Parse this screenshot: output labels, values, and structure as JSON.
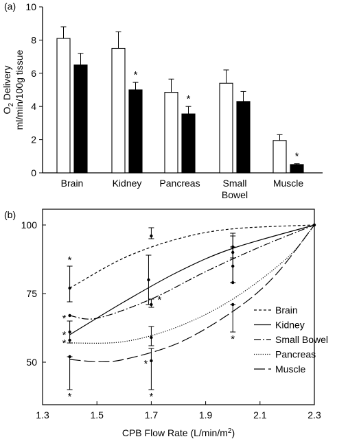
{
  "chart_data": [
    {
      "type": "bar",
      "panel_label": "(a)",
      "ylabel_line1": "O2 Delivery",
      "ylabel_line2": "ml/min/100g tissue",
      "ylim": [
        0,
        10
      ],
      "yticks": [
        0,
        2,
        4,
        6,
        8,
        10
      ],
      "categories": [
        "Brain",
        "Kidney",
        "Pancreas",
        "Small\nBowel",
        "Muscle"
      ],
      "series": [
        {
          "fill": "#ffffff",
          "values": [
            8.1,
            7.5,
            4.85,
            5.4,
            1.95
          ],
          "errors": [
            0.7,
            1.0,
            0.8,
            0.8,
            0.35
          ]
        },
        {
          "fill": "#000000",
          "values": [
            6.5,
            5.0,
            3.55,
            4.3,
            0.5
          ],
          "errors": [
            0.7,
            0.45,
            0.45,
            0.6,
            0.05
          ]
        }
      ],
      "significance": [
        "",
        "*",
        "*",
        "",
        "*"
      ]
    },
    {
      "type": "line",
      "panel_label": "(b)",
      "xlabel": "CPB Flow Rate (L/min/m2)",
      "xlim": [
        1.3,
        2.3
      ],
      "ylim": [
        35,
        100
      ],
      "xticks": [
        1.3,
        1.5,
        1.7,
        1.9,
        2.1,
        2.3
      ],
      "yticks": [
        50,
        75,
        100
      ],
      "series": [
        {
          "name": "Brain",
          "dash": "4,3",
          "curve": [
            [
              1.4,
              77
            ],
            [
              1.6,
              88
            ],
            [
              1.8,
              95
            ],
            [
              2.0,
              98.6
            ],
            [
              2.3,
              100
            ]
          ],
          "points": [
            {
              "x": 1.4,
              "y": 77,
              "lo": 72,
              "hi": 85,
              "star_top": true
            },
            {
              "x": 1.7,
              "y": 96,
              "lo": 95,
              "hi": 99
            },
            {
              "x": 2.0,
              "y": 92,
              "lo": 88,
              "hi": 97
            },
            {
              "x": 2.3,
              "y": 100
            }
          ]
        },
        {
          "name": "Kidney",
          "dash": "",
          "curve": [
            [
              1.4,
              60
            ],
            [
              1.6,
              72
            ],
            [
              1.8,
              83
            ],
            [
              2.0,
              91.5
            ],
            [
              2.3,
              100
            ]
          ],
          "points": [
            {
              "x": 1.4,
              "y": 61,
              "lo": 57,
              "hi": 65,
              "star_left": true
            },
            {
              "x": 1.69,
              "y": 80,
              "lo": 71,
              "hi": 89
            },
            {
              "x": 2.0,
              "y": 90,
              "lo": 79,
              "hi": 96
            },
            {
              "x": 2.3,
              "y": 100
            }
          ]
        },
        {
          "name": "Small Bowel",
          "dash": "10,3,2,3",
          "curve": [
            [
              1.4,
              67
            ],
            [
              1.5,
              66
            ],
            [
              1.7,
              73
            ],
            [
              1.9,
              83
            ],
            [
              2.1,
              92
            ],
            [
              2.3,
              100
            ]
          ],
          "points": [
            {
              "x": 1.4,
              "y": 67,
              "star_left": true
            },
            {
              "x": 1.7,
              "y": 71,
              "lo": 70,
              "hi": 73,
              "star_right": true
            },
            {
              "x": 2.0,
              "y": 85,
              "lo": 79,
              "hi": 92
            },
            {
              "x": 2.3,
              "y": 100
            }
          ]
        },
        {
          "name": "Pancreas",
          "dash": "1.2,2",
          "curve": [
            [
              1.4,
              57
            ],
            [
              1.6,
              57.5
            ],
            [
              1.8,
              63
            ],
            [
              2.0,
              73
            ],
            [
              2.2,
              88
            ],
            [
              2.3,
              100
            ]
          ],
          "points": [
            {
              "x": 1.4,
              "y": 58,
              "star_left": true
            },
            {
              "x": 1.7,
              "y": 59,
              "lo": 56,
              "hi": 63
            },
            {
              "x": 2.0,
              "y": 79
            },
            {
              "x": 2.3,
              "y": 100
            }
          ]
        },
        {
          "name": "Muscle",
          "dash": "16,5",
          "curve": [
            [
              1.4,
              51
            ],
            [
              1.5,
              50.2
            ],
            [
              1.6,
              51
            ],
            [
              1.8,
              57
            ],
            [
              2.0,
              68.5
            ],
            [
              2.15,
              81
            ],
            [
              2.3,
              100
            ]
          ],
          "points": [
            {
              "x": 1.4,
              "y": 52,
              "lo": 40,
              "hi": 52,
              "star_bottom": true
            },
            {
              "x": 1.7,
              "y": 50.5,
              "lo": 40,
              "hi": 55,
              "star_bottom": true,
              "star_left": true
            },
            {
              "x": 2.0,
              "y": 71,
              "lo": 61,
              "hi": 71,
              "star_bottom": true
            },
            {
              "x": 2.3,
              "y": 100
            }
          ]
        }
      ]
    }
  ]
}
